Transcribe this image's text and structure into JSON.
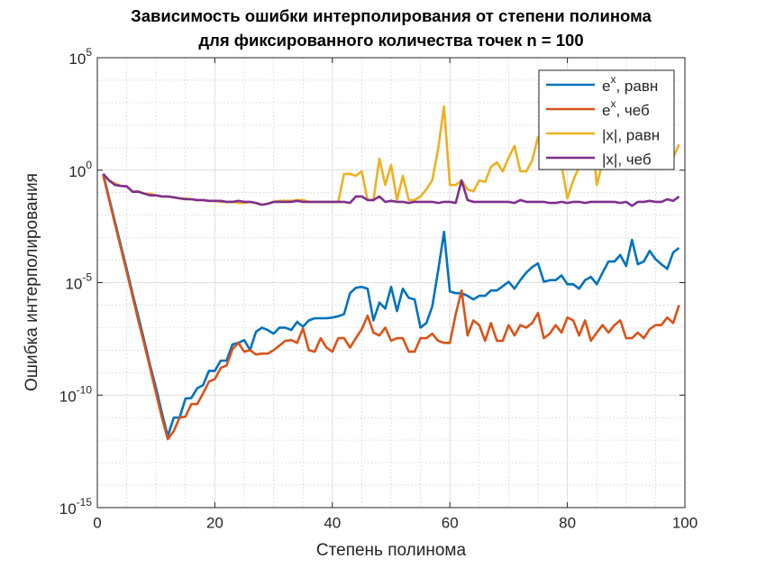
{
  "chart_data": {
    "type": "line",
    "title": [
      "Зависимость ошибки интерполирования от степени полинома",
      "для фиксированного количества точек n = 100"
    ],
    "xlabel": "Степень полинома",
    "ylabel": "Ошибка интерполирования",
    "log_y": true,
    "grid": true,
    "minor_grid": true,
    "legend_position": "northeast",
    "xlim": [
      0,
      100
    ],
    "xticks": [
      0,
      20,
      40,
      60,
      80,
      100
    ],
    "ylim": [
      1e-15,
      100000
    ],
    "yticks": [
      {
        "value": 1e-15,
        "label": "10^-15"
      },
      {
        "value": 1e-10,
        "label": "10^-10"
      },
      {
        "value": 1e-05,
        "label": "10^-5"
      },
      {
        "value": 1,
        "label": "10^0"
      },
      {
        "value": 100000,
        "label": "10^5"
      }
    ],
    "x": [
      1,
      2,
      3,
      4,
      5,
      6,
      7,
      8,
      9,
      10,
      11,
      12,
      13,
      14,
      15,
      16,
      17,
      18,
      19,
      20,
      21,
      22,
      23,
      24,
      25,
      26,
      27,
      28,
      29,
      30,
      31,
      32,
      33,
      34,
      35,
      36,
      37,
      38,
      39,
      40,
      41,
      42,
      43,
      44,
      45,
      46,
      47,
      48,
      49,
      50,
      51,
      52,
      53,
      54,
      55,
      56,
      57,
      58,
      59,
      60,
      61,
      62,
      63,
      64,
      65,
      66,
      67,
      68,
      69,
      70,
      71,
      72,
      73,
      74,
      75,
      76,
      77,
      78,
      79,
      80,
      81,
      82,
      83,
      84,
      85,
      86,
      87,
      88,
      89,
      90,
      91,
      92,
      93,
      94,
      95,
      96,
      97,
      98,
      99
    ],
    "series": [
      {
        "name": "e^x, равн",
        "color": "#0072BD",
        "values": [
          0.68,
          0.059,
          0.005,
          0.00045,
          4e-05,
          3.2e-06,
          3e-07,
          2.5e-08,
          2e-09,
          2e-10,
          1.6e-11,
          1.5e-12,
          1e-11,
          1e-11,
          7e-11,
          7.5e-11,
          2e-10,
          2.8e-10,
          1.2e-09,
          1.2e-09,
          3.4e-09,
          3.4e-09,
          1.8e-08,
          2.1e-08,
          2.8e-08,
          1e-08,
          6.5e-08,
          1e-07,
          7.8e-08,
          5.4e-08,
          1e-07,
          1e-07,
          7.8e-08,
          1.8e-07,
          1.1e-07,
          2.1e-07,
          2.6e-07,
          2.6e-07,
          2.6e-07,
          2.8e-07,
          3.2e-07,
          4e-07,
          3.4e-06,
          5.9e-06,
          6.5e-06,
          5.4e-06,
          2.1e-07,
          1.3e-06,
          7e-07,
          6.5e-06,
          5.4e-07,
          5.4e-06,
          2.1e-06,
          1.8e-06,
          1e-07,
          1.6e-07,
          8.5e-07,
          3.4e-05,
          0.0018,
          4.1e-06,
          3.4e-06,
          3.4e-06,
          2.6e-06,
          1.8e-06,
          2.6e-06,
          2.6e-06,
          4.5e-06,
          4.5e-06,
          7e-06,
          1.1e-05,
          5.4e-06,
          1.3e-05,
          2.8e-05,
          4.9e-05,
          7.2e-05,
          1.1e-05,
          1.3e-05,
          1.3e-05,
          2.1e-05,
          8.5e-06,
          8.5e-06,
          5.4e-06,
          1.3e-05,
          1.8e-05,
          8.5e-06,
          2.8e-05,
          8.7e-05,
          8.7e-05,
          0.00017,
          5.5e-05,
          0.0008,
          6.6e-05,
          8.7e-05,
          0.00026,
          0.00011,
          6.6e-05,
          4.1e-05,
          0.00022,
          0.00035
        ]
      },
      {
        "name": "e^x, чеб",
        "color": "#D95319",
        "values": [
          0.6,
          0.05,
          0.004,
          0.00035,
          3e-05,
          2.5e-06,
          2e-07,
          1.8e-08,
          1.5e-09,
          1.2e-10,
          1e-11,
          1.1e-12,
          2.5e-12,
          1e-11,
          1.1e-11,
          4e-11,
          4e-11,
          1.2e-10,
          4e-10,
          5.2e-10,
          1.6e-09,
          2.1e-09,
          1.1e-08,
          2.1e-08,
          8.5e-09,
          1e-08,
          6.4e-09,
          7e-09,
          7e-09,
          1e-08,
          1.6e-08,
          2.6e-08,
          2.8e-08,
          2.1e-08,
          9.3e-08,
          1e-08,
          8.5e-09,
          3.4e-08,
          1.3e-08,
          8.5e-09,
          3.4e-08,
          3.4e-08,
          1.3e-08,
          3.4e-08,
          8.5e-08,
          3.4e-07,
          6e-08,
          4.5e-08,
          1e-07,
          2.6e-08,
          3.4e-08,
          3.4e-08,
          8.5e-09,
          8.5e-09,
          3.4e-08,
          3.4e-08,
          5.4e-08,
          2.6e-08,
          2.1e-08,
          2.1e-08,
          4e-07,
          4.5e-06,
          4.5e-08,
          2.1e-07,
          1.3e-07,
          2.6e-08,
          1.6e-07,
          2.6e-08,
          2.6e-08,
          1.3e-07,
          4.5e-08,
          1.3e-07,
          1e-07,
          1.6e-07,
          4.5e-07,
          3.4e-08,
          5.4e-08,
          1.3e-07,
          6e-08,
          2.8e-07,
          2.1e-07,
          4.5e-08,
          2.1e-07,
          2.6e-08,
          6e-08,
          1.3e-07,
          6e-08,
          1.3e-07,
          2.1e-07,
          3.4e-08,
          3.4e-08,
          6e-08,
          3.4e-08,
          8.5e-08,
          1.3e-07,
          1.3e-07,
          2.8e-07,
          1.6e-07,
          1e-06
        ]
      },
      {
        "name": "|x|, равн",
        "color": "#EDB120",
        "values": [
          0.68,
          0.35,
          0.26,
          0.2,
          0.19,
          0.11,
          0.115,
          0.09,
          0.09,
          0.076,
          0.068,
          0.068,
          0.062,
          0.056,
          0.056,
          0.051,
          0.047,
          0.047,
          0.043,
          0.043,
          0.039,
          0.039,
          0.039,
          0.035,
          0.035,
          0.039,
          0.035,
          0.029,
          0.032,
          0.039,
          0.043,
          0.043,
          0.043,
          0.047,
          0.047,
          0.039,
          0.039,
          0.039,
          0.039,
          0.039,
          0.039,
          0.68,
          0.68,
          0.56,
          0.88,
          0.047,
          0.047,
          3.2,
          0.22,
          1.7,
          0.047,
          0.56,
          0.047,
          0.047,
          0.068,
          0.14,
          0.35,
          8.9,
          680,
          0.22,
          0.22,
          0.35,
          0.14,
          0.115,
          0.35,
          0.3,
          1.4,
          2.2,
          0.88,
          3.6,
          12,
          0.88,
          0.88,
          2.7,
          30,
          2.2,
          3.6,
          4.7,
          1.7,
          0.056,
          0.35,
          1.4,
          5.6,
          140,
          0.22,
          2.2,
          4.7,
          14,
          22,
          36,
          22,
          8.9,
          17,
          3.6,
          36,
          5.6,
          14,
          3.6,
          14
        ]
      },
      {
        "name": "|x|, чеб",
        "color": "#7E2F8E",
        "values": [
          0.68,
          0.35,
          0.22,
          0.2,
          0.19,
          0.11,
          0.11,
          0.09,
          0.076,
          0.076,
          0.068,
          0.068,
          0.062,
          0.056,
          0.051,
          0.051,
          0.047,
          0.047,
          0.043,
          0.043,
          0.043,
          0.039,
          0.039,
          0.043,
          0.039,
          0.039,
          0.035,
          0.029,
          0.032,
          0.039,
          0.039,
          0.039,
          0.039,
          0.043,
          0.039,
          0.039,
          0.039,
          0.039,
          0.039,
          0.039,
          0.039,
          0.039,
          0.035,
          0.068,
          0.068,
          0.047,
          0.047,
          0.068,
          0.039,
          0.043,
          0.039,
          0.039,
          0.035,
          0.039,
          0.039,
          0.039,
          0.039,
          0.035,
          0.039,
          0.039,
          0.035,
          0.35,
          0.047,
          0.039,
          0.039,
          0.039,
          0.039,
          0.039,
          0.039,
          0.039,
          0.035,
          0.047,
          0.039,
          0.039,
          0.039,
          0.039,
          0.035,
          0.035,
          0.039,
          0.035,
          0.039,
          0.039,
          0.035,
          0.039,
          0.039,
          0.039,
          0.039,
          0.039,
          0.035,
          0.039,
          0.026,
          0.039,
          0.039,
          0.043,
          0.039,
          0.039,
          0.051,
          0.043,
          0.068
        ]
      }
    ]
  }
}
